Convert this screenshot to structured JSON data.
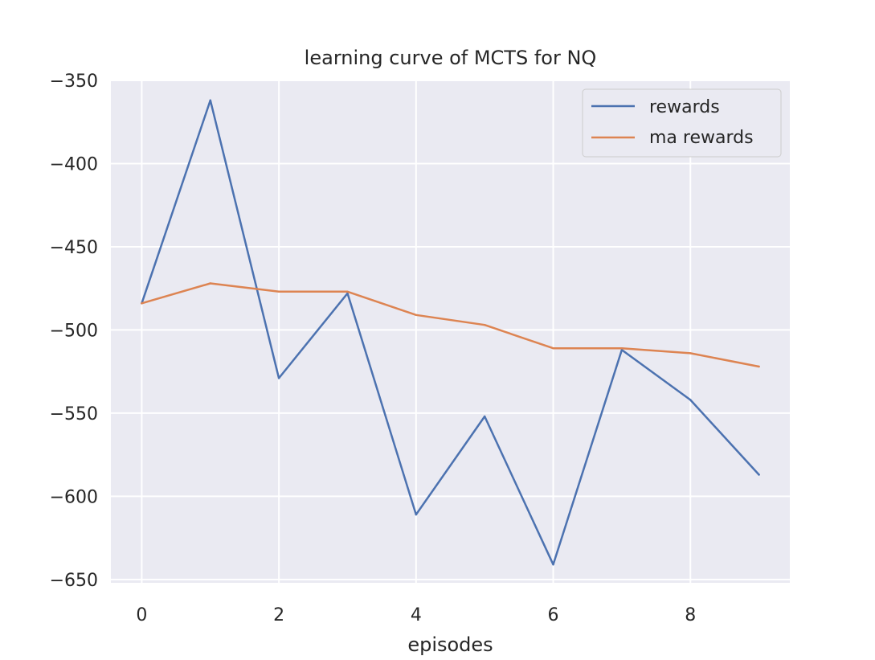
{
  "chart_data": {
    "type": "line",
    "title": "learning curve of MCTS for NQ",
    "xlabel": "episodes",
    "ylabel": "",
    "x": [
      0,
      1,
      2,
      3,
      4,
      5,
      6,
      7,
      8,
      9
    ],
    "xlim": [
      -0.45,
      9.45
    ],
    "ylim": [
      -652,
      -350
    ],
    "xticks": [
      0,
      2,
      4,
      6,
      8
    ],
    "yticks": [
      -350,
      -400,
      -450,
      -500,
      -550,
      -600,
      -650
    ],
    "xtick_labels": [
      "0",
      "2",
      "4",
      "6",
      "8"
    ],
    "ytick_labels": [
      "−350",
      "−400",
      "−450",
      "−500",
      "−550",
      "−600",
      "−650"
    ],
    "grid": true,
    "legend_position": "top-right",
    "colors": {
      "plot_background": "#eaeaf2",
      "grid": "#ffffff",
      "text": "#262626"
    },
    "series": [
      {
        "name": "rewards",
        "color": "#4c72b0",
        "values": [
          -484,
          -362,
          -529,
          -478,
          -611,
          -552,
          -641,
          -512,
          -542,
          -587
        ]
      },
      {
        "name": "ma rewards",
        "color": "#dd8452",
        "values": [
          -484,
          -472,
          -477,
          -477,
          -491,
          -497,
          -511,
          -511,
          -514,
          -522
        ]
      }
    ]
  }
}
